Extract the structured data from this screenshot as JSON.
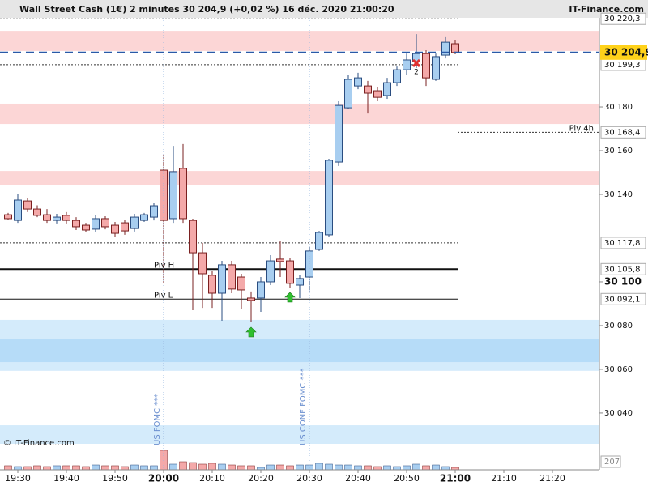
{
  "chart_data": {
    "type": "candlestick",
    "title": "Wall Street Cash (1€) 2 minutes 30 204,9 (+0,02 %) 16 déc. 2020 21:00:20",
    "source": "IT-Finance.com",
    "copyright": "© IT-Finance.com",
    "x": [
      "19:28",
      "19:30",
      "19:32",
      "19:34",
      "19:36",
      "19:38",
      "19:40",
      "19:42",
      "19:44",
      "19:46",
      "19:48",
      "19:50",
      "19:52",
      "19:54",
      "19:56",
      "19:58",
      "20:00",
      "20:02",
      "20:04",
      "20:06",
      "20:08",
      "20:10",
      "20:12",
      "20:14",
      "20:16",
      "20:18",
      "20:20",
      "20:22",
      "20:24",
      "20:26",
      "20:28",
      "20:30",
      "20:32",
      "20:34",
      "20:36",
      "20:38",
      "20:40",
      "20:42",
      "20:44",
      "20:46",
      "20:48",
      "20:50",
      "20:52",
      "20:54",
      "20:56",
      "20:58",
      "21:00"
    ],
    "open": [
      30130.7,
      30128.1,
      30137,
      30133.3,
      30130.7,
      30128.1,
      30130.4,
      30128.1,
      30125.9,
      30124.1,
      30128.9,
      30125.9,
      30127,
      30124.4,
      30128.1,
      30129.6,
      30151.1,
      30128.9,
      30151.9,
      30128.1,
      30113.3,
      30103,
      30094.8,
      30107.8,
      30102.2,
      30092.6,
      30092.6,
      30100,
      30110.4,
      30109.6,
      30098.5,
      30102.2,
      30114.8,
      30121.5,
      30154.8,
      30179.6,
      30189.6,
      30189.6,
      30187.4,
      30185.2,
      30191.1,
      30197,
      30200.7,
      30204.4,
      30192.6,
      30203.7,
      30208.9
    ],
    "high": [
      30131.5,
      30140,
      30138.5,
      30135,
      30133.3,
      30131.1,
      30131.9,
      30129.6,
      30127,
      30130.4,
      30130,
      30127.4,
      30128.5,
      30131.1,
      30131.5,
      30136.3,
      30158.5,
      30162.2,
      30163,
      30128.9,
      30117.8,
      30104.8,
      30109.6,
      30109.6,
      30103.7,
      30095.6,
      30102.2,
      30112.2,
      30118.5,
      30111.1,
      30103,
      30115.9,
      30123.3,
      30156.3,
      30182.6,
      30194.8,
      30195.6,
      30191.9,
      30188.9,
      30193.3,
      30198.5,
      30204.4,
      30213.3,
      30205.9,
      30204.4,
      30211.9,
      30210.4
    ],
    "low": [
      30128.5,
      30127,
      30131.9,
      30129.6,
      30127,
      30126.7,
      30126.7,
      30123.7,
      30122.6,
      30122.6,
      30124,
      30120.7,
      30121.5,
      30123,
      30127.4,
      30128.1,
      30099.3,
      30127,
      30127,
      30087,
      30088.1,
      30088.1,
      30082.2,
      30094.8,
      30087.4,
      30081.5,
      30086.3,
      30098.5,
      30102.2,
      30097.4,
      30092.6,
      30095.6,
      30114.1,
      30120.7,
      30153,
      30178.9,
      30188.1,
      30177,
      30182.6,
      30183.7,
      30189.6,
      30194.8,
      30197.8,
      30189.6,
      30191.9,
      30202.2,
      30204.1
    ],
    "close": [
      30128.9,
      30137.4,
      30133.3,
      30130.4,
      30128.1,
      30129.6,
      30128.1,
      30125.2,
      30123.7,
      30128.9,
      30125.2,
      30122.2,
      30123.3,
      30129.6,
      30130.7,
      30134.8,
      30128.1,
      30150.4,
      30128.9,
      30113.3,
      30103.7,
      30094.8,
      30107.8,
      30096.7,
      30096.3,
      30091.5,
      30100,
      30109.6,
      30109.3,
      30099.3,
      30101.5,
      30114.1,
      30122.6,
      30155.6,
      30180.7,
      30192.6,
      30193.3,
      30186.3,
      30184.4,
      30191.1,
      30197,
      30201.5,
      30204.4,
      30193.3,
      30203,
      30209.6,
      30204.9
    ],
    "volume": [
      104,
      83,
      83,
      104,
      83,
      104,
      104,
      104,
      83,
      124,
      104,
      104,
      83,
      124,
      104,
      104,
      497,
      145,
      207,
      186,
      145,
      166,
      145,
      124,
      104,
      104,
      62,
      124,
      124,
      104,
      124,
      124,
      166,
      145,
      124,
      124,
      104,
      104,
      83,
      104,
      83,
      104,
      145,
      104,
      124,
      83,
      62
    ],
    "ylim": [
      30023.3,
      30221.5
    ],
    "yticks": [
      {
        "value": 30040,
        "label": "30 040"
      },
      {
        "value": 30060,
        "label": "30 060"
      },
      {
        "value": 30080,
        "label": "30 080"
      },
      {
        "value": 30100,
        "label": "30 100"
      },
      {
        "value": 30140,
        "label": "30 140"
      },
      {
        "value": 30160,
        "label": "30 160"
      },
      {
        "value": 30180,
        "label": "30 180"
      }
    ],
    "volume_lim": [
      0,
      517.5
    ],
    "volume_ticks": [
      207
    ],
    "xticks": [
      "19:30",
      "19:40",
      "19:50",
      "20:00",
      "20:10",
      "20:20",
      "20:30",
      "20:40",
      "20:50",
      "21:00",
      "21:10",
      "21:20"
    ],
    "last": {
      "value": 30204.9,
      "label": "30 204,9"
    },
    "levels": [
      {
        "value": 30220.3,
        "label": "30 220,3",
        "style": "dotted"
      },
      {
        "value": 30199.3,
        "label": "30 199,3",
        "style": "dotted"
      },
      {
        "value": 30168.4,
        "label": "30 168,4",
        "style": "dotted-right",
        "name": "Piv 4h"
      },
      {
        "value": 30117.8,
        "label": "30 117,8",
        "style": "dotted"
      },
      {
        "value": 30105.8,
        "label": "30 105,8",
        "style": "thick",
        "name": "Piv H"
      },
      {
        "value": 30092.1,
        "label": "30 092,1",
        "style": "thin",
        "name": "Piv L"
      }
    ],
    "zones": [
      {
        "range": [
          30205.6,
          30214.8
        ],
        "color": "#fcd6d6"
      },
      {
        "range": [
          30172.2,
          30181.5
        ],
        "color": "#fcd6d6"
      },
      {
        "range": [
          30144.1,
          30150.7
        ],
        "color": "#fcd6d6"
      },
      {
        "range": [
          30059.3,
          30082.6
        ],
        "color": "#d4ebfb"
      },
      {
        "range": [
          30063.3,
          30073.7
        ],
        "color": "#b6dcf8"
      },
      {
        "range": [
          30025.9,
          30034.4
        ],
        "color": "#d4ebfb"
      }
    ],
    "events": [
      {
        "time": "20:00",
        "label": "US FOMC ***"
      },
      {
        "time": "20:30",
        "label": "US CONF FOMC ***"
      }
    ],
    "signals": [
      {
        "time": "20:18",
        "kind": "buy"
      },
      {
        "time": "20:26",
        "kind": "buy"
      },
      {
        "time": "20:52",
        "kind": "sell",
        "label": "2"
      }
    ],
    "up_color": "#a8cef0",
    "down_color": "#f4a9a9"
  }
}
